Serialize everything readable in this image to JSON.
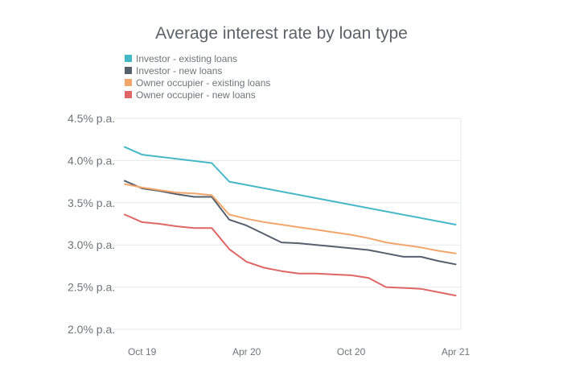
{
  "chart_data": {
    "type": "line",
    "title": "Average interest rate by loan type",
    "xlabel": "",
    "ylabel": "",
    "ylim": [
      2.0,
      4.5
    ],
    "yticks": [
      2.0,
      2.5,
      3.0,
      3.5,
      4.0,
      4.5
    ],
    "ytick_labels": [
      "2.0% p.a.",
      "2.5% p.a.",
      "3.0% p.a.",
      "3.5% p.a.",
      "4.0% p.a.",
      "4.5% p.a."
    ],
    "x_months": [
      "Sep 19",
      "Oct 19",
      "Nov 19",
      "Dec 19",
      "Jan 20",
      "Feb 20",
      "Mar 20",
      "Apr 20",
      "May 20",
      "Jun 20",
      "Jul 20",
      "Aug 20",
      "Sep 20",
      "Oct 20",
      "Nov 20",
      "Dec 20",
      "Jan 21",
      "Feb 21",
      "Mar 21",
      "Apr 21"
    ],
    "xtick_labels": [
      "Oct 19",
      "Apr 20",
      "Oct 20",
      "Apr 21"
    ],
    "xtick_months": [
      "Oct 19",
      "Apr 20",
      "Oct 20",
      "Apr 21"
    ],
    "grid": true,
    "legend_position": "top-left",
    "series": [
      {
        "name": "Investor - existing loans",
        "color": "#45b8c8",
        "x": [
          "Sep 19",
          "Oct 19",
          "Feb 20",
          "Mar 20",
          "Apr 21"
        ],
        "values": [
          4.16,
          4.07,
          3.97,
          3.75,
          3.24
        ]
      },
      {
        "name": "Investor - new loans",
        "color": "#555f6e",
        "x": [
          "Sep 19",
          "Oct 19",
          "Nov 19",
          "Dec 19",
          "Jan 20",
          "Feb 20",
          "Mar 20",
          "Apr 20",
          "May 20",
          "Jun 20",
          "Jul 20",
          "Aug 20",
          "Sep 20",
          "Oct 20",
          "Nov 20",
          "Dec 20",
          "Jan 21",
          "Feb 21",
          "Mar 21",
          "Apr 21"
        ],
        "values": [
          3.76,
          3.67,
          3.64,
          3.6,
          3.57,
          3.57,
          3.3,
          3.23,
          3.13,
          3.03,
          3.02,
          3.0,
          2.98,
          2.96,
          2.94,
          2.9,
          2.86,
          2.86,
          2.81,
          2.77
        ]
      },
      {
        "name": "Owner occupier - existing loans",
        "color": "#f2a66b",
        "x": [
          "Sep 19",
          "Oct 19",
          "Nov 19",
          "Dec 19",
          "Jan 20",
          "Feb 20",
          "Mar 20",
          "Apr 20",
          "May 20",
          "Jun 20",
          "Jul 20",
          "Aug 20",
          "Sep 20",
          "Oct 20",
          "Nov 20",
          "Dec 20",
          "Jan 21",
          "Feb 21",
          "Mar 21",
          "Apr 21"
        ],
        "values": [
          3.72,
          3.68,
          3.65,
          3.62,
          3.61,
          3.59,
          3.36,
          3.31,
          3.27,
          3.24,
          3.21,
          3.18,
          3.15,
          3.12,
          3.08,
          3.03,
          3.0,
          2.97,
          2.93,
          2.9
        ]
      },
      {
        "name": "Owner occupier - new loans",
        "color": "#e06666",
        "x": [
          "Sep 19",
          "Oct 19",
          "Nov 19",
          "Dec 19",
          "Jan 20",
          "Feb 20",
          "Mar 20",
          "Apr 20",
          "May 20",
          "Jun 20",
          "Jul 20",
          "Aug 20",
          "Sep 20",
          "Oct 20",
          "Nov 20",
          "Dec 20",
          "Jan 21",
          "Feb 21",
          "Mar 21",
          "Apr 21"
        ],
        "values": [
          3.36,
          3.27,
          3.25,
          3.22,
          3.2,
          3.2,
          2.95,
          2.8,
          2.73,
          2.69,
          2.66,
          2.66,
          2.65,
          2.64,
          2.61,
          2.5,
          2.49,
          2.48,
          2.44,
          2.4
        ]
      }
    ]
  }
}
